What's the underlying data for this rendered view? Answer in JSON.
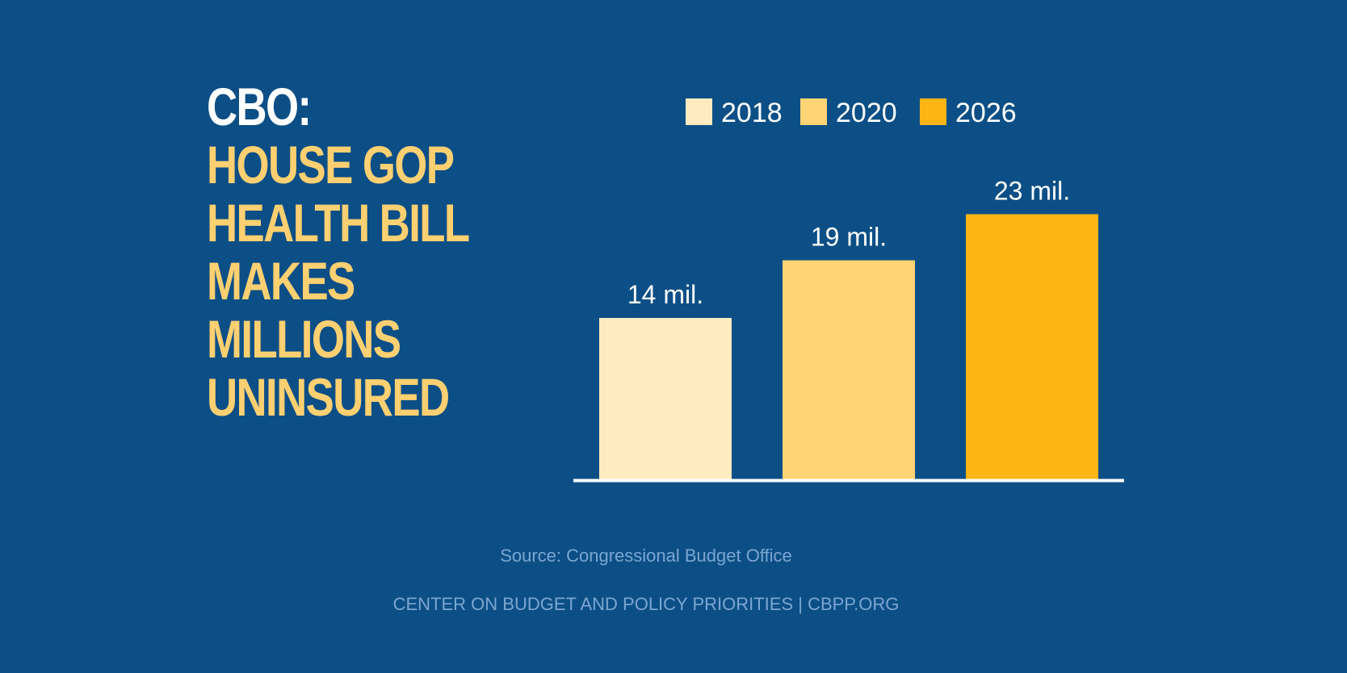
{
  "headline": {
    "lead": "CBO:",
    "lines": [
      "HOUSE GOP",
      "HEALTH BILL",
      "MAKES",
      "MILLIONS",
      "UNINSURED"
    ]
  },
  "chart_data": {
    "type": "bar",
    "categories": [
      "2018",
      "2020",
      "2026"
    ],
    "values": [
      14,
      19,
      23
    ],
    "data_labels": [
      "14 mil.",
      "19 mil.",
      "23 mil."
    ],
    "colors": [
      "#feebc0",
      "#ffd474",
      "#fdb515"
    ],
    "legend": [
      "2018",
      "2020",
      "2026"
    ],
    "legend_position": "top",
    "axis_color": "#ffffff",
    "ylim": [
      0,
      25
    ],
    "xlabel": "",
    "ylabel": "",
    "grid": false
  },
  "source": "Source: Congressional Budget Office",
  "footer": "CENTER ON BUDGET AND POLICY PRIORITIES | CBPP.ORG"
}
